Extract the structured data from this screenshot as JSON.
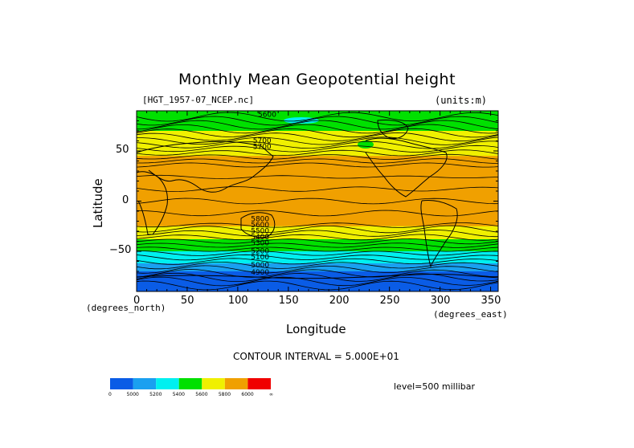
{
  "chart_data": {
    "type": "contour",
    "title": "Monthly Mean Geopotential height",
    "source_file": "[HGT_1957-07_NCEP.nc]",
    "units": "(units:m)",
    "xlabel": "Longitude",
    "ylabel": "Latitude",
    "x_units": "(degrees_east)",
    "y_units": "(degrees_north)",
    "xlim": [
      0,
      357.5
    ],
    "ylim": [
      -90,
      90
    ],
    "x_ticks": [
      "0",
      "50",
      "100",
      "150",
      "200",
      "250",
      "300",
      "350"
    ],
    "y_ticks": [
      "50",
      "0",
      "−50"
    ],
    "contour_interval_text": "CONTOUR INTERVAL = 5.000E+01",
    "level_text": "level=500 millibar",
    "contour_labels": [
      "5600",
      "5700",
      "5700",
      "5800",
      "5600",
      "5500",
      "5400",
      "5300",
      "5200",
      "5100",
      "5000",
      "4900"
    ],
    "colorbar": {
      "colors": [
        "#0a5ce6",
        "#1aa0f0",
        "#00f0f0",
        "#00e000",
        "#f0f000",
        "#f0a000",
        "#f00000"
      ],
      "labels": [
        "0",
        "5000",
        "5200",
        "5400",
        "5600",
        "5800",
        "6000",
        "∞"
      ]
    },
    "bands": [
      {
        "lat_top": 90,
        "lat_bottom": 80,
        "color_index": 3
      },
      {
        "lat_top": 80,
        "lat_bottom": 70,
        "color_index": 3
      },
      {
        "lat_top": 70,
        "lat_bottom": 58,
        "color_index": 4
      },
      {
        "lat_top": 58,
        "lat_bottom": 45,
        "color_index": 4
      },
      {
        "lat_top": 45,
        "lat_bottom": -25,
        "color_index": 5
      },
      {
        "lat_top": -25,
        "lat_bottom": -38,
        "color_index": 4
      },
      {
        "lat_top": -38,
        "lat_bottom": -50,
        "color_index": 3
      },
      {
        "lat_top": -50,
        "lat_bottom": -62,
        "color_index": 2
      },
      {
        "lat_top": -62,
        "lat_bottom": -70,
        "color_index": 1
      },
      {
        "lat_top": -70,
        "lat_bottom": -90,
        "color_index": 0
      }
    ]
  }
}
